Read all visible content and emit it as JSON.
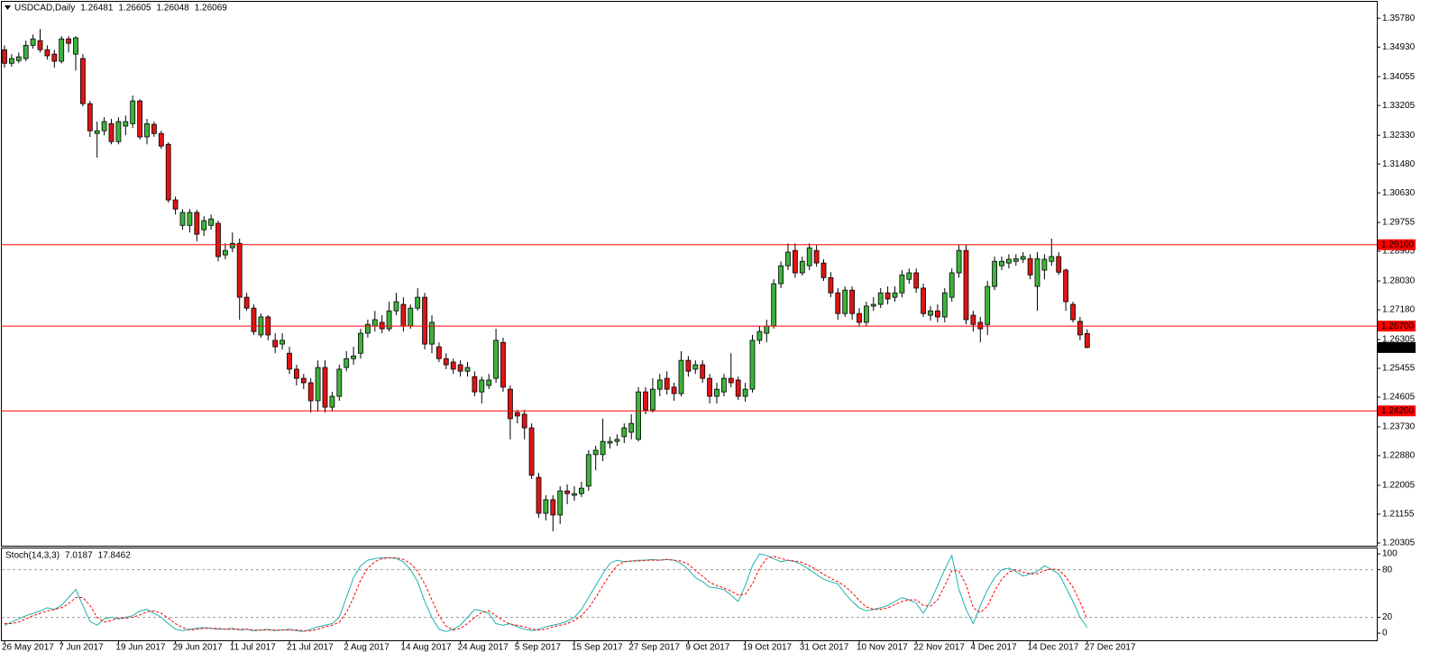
{
  "chart_data": [
    {
      "type": "candlestick",
      "title": "USDCAD,Daily",
      "categories": [
        "26 May 2017",
        null,
        null,
        null,
        null,
        null,
        null,
        null,
        "7 Jun 2017",
        null,
        null,
        null,
        null,
        null,
        null,
        null,
        "19 Jun 2017",
        null,
        null,
        null,
        null,
        null,
        null,
        null,
        "29 Jun 2017",
        null,
        null,
        null,
        null,
        null,
        null,
        null,
        "11 Jul 2017",
        null,
        null,
        null,
        null,
        null,
        null,
        null,
        "21 Jul 2017",
        null,
        null,
        null,
        null,
        null,
        null,
        null,
        "2 Aug 2017",
        null,
        null,
        null,
        null,
        null,
        null,
        null,
        "14 Aug 2017",
        null,
        null,
        null,
        null,
        null,
        null,
        null,
        "24 Aug 2017",
        null,
        null,
        null,
        null,
        null,
        null,
        null,
        "5 Sep 2017",
        null,
        null,
        null,
        null,
        null,
        null,
        null,
        "15 Sep 2017",
        null,
        null,
        null,
        null,
        null,
        null,
        null,
        "27 Sep 2017",
        null,
        null,
        null,
        null,
        null,
        null,
        null,
        "9 Oct 2017",
        null,
        null,
        null,
        null,
        null,
        null,
        null,
        "19 Oct 2017",
        null,
        null,
        null,
        null,
        null,
        null,
        null,
        "31 Oct 2017",
        null,
        null,
        null,
        null,
        null,
        null,
        null,
        "10 Nov 2017",
        null,
        null,
        null,
        null,
        null,
        null,
        null,
        "22 Nov 2017",
        null,
        null,
        null,
        null,
        null,
        null,
        null,
        "4 Dec 2017",
        null,
        null,
        null,
        null,
        null,
        null,
        null,
        "14 Dec 2017",
        null,
        null,
        null,
        null,
        null,
        null,
        null,
        "27 Dec 2017"
      ],
      "open": [
        1.3485,
        1.3445,
        1.3453,
        1.3459,
        1.3498,
        1.3512,
        1.3485,
        1.3472,
        1.3451,
        1.3517,
        1.3472,
        1.3459,
        1.3326,
        1.3238,
        1.3246,
        1.3267,
        1.3214,
        1.326,
        1.3267,
        1.3334,
        1.3228,
        1.3265,
        1.3238,
        1.3206,
        1.3042,
        1.2967,
        1.2967,
        1.3005,
        1.2954,
        1.2967,
        1.2973,
        1.288,
        1.2901,
        1.2914,
        1.2755,
        1.2723,
        1.2644,
        1.2697,
        1.2628,
        1.2617,
        1.259,
        1.2543,
        1.2516,
        1.2503,
        1.245,
        1.2548,
        1.2431,
        1.2463,
        1.2548,
        1.2574,
        1.259,
        1.2649,
        1.267,
        1.2681,
        1.2662,
        1.2715,
        1.2734,
        1.267,
        1.2723,
        1.2755,
        1.2617,
        1.2609,
        1.2574,
        1.2564,
        1.2556,
        1.2537,
        1.2521,
        1.2476,
        1.2495,
        1.2516,
        1.2622,
        1.2484,
        1.2415,
        1.241,
        1.237,
        1.2224,
        1.2118,
        1.2158,
        1.2113,
        1.2184,
        1.2171,
        1.2176,
        1.2198,
        1.2291,
        1.2291,
        1.2325,
        1.233,
        1.2344,
        1.2357,
        1.2336,
        1.2476,
        1.2423,
        1.2484,
        1.2516,
        1.249,
        1.2471,
        1.2569,
        1.2543,
        1.2556,
        1.2516,
        1.2463,
        1.2476,
        1.2516,
        1.2511,
        1.2463,
        1.2484,
        1.2628,
        1.2649,
        1.267,
        1.2795,
        1.2848,
        1.2893,
        1.2827,
        1.2848,
        1.2893,
        1.2856,
        1.2813,
        1.2768,
        1.2707,
        1.2776,
        1.2707,
        1.2681,
        1.2729,
        1.2734,
        1.2768,
        1.2755,
        1.2768,
        1.2808,
        1.2827,
        1.2782,
        1.2702,
        1.2715,
        1.2697,
        1.2755,
        1.2827,
        1.2893,
        1.2702,
        1.2681,
        1.2675,
        1.2787,
        1.2848,
        1.2856,
        1.2861,
        1.2867,
        1.2869,
        1.2787,
        1.2835,
        1.2861,
        1.2875,
        1.2835,
        1.2734,
        1.2684,
        1.26481
      ],
      "high": [
        1.3498,
        1.3472,
        1.3477,
        1.3512,
        1.353,
        1.3546,
        1.3498,
        1.3485,
        1.3525,
        1.3525,
        1.3525,
        1.3472,
        1.3334,
        1.3273,
        1.3286,
        1.3281,
        1.3286,
        1.3291,
        1.335,
        1.3339,
        1.3281,
        1.3273,
        1.3246,
        1.3212,
        1.3052,
        1.3015,
        1.3015,
        1.3013,
        1.2994,
        1.2999,
        1.2981,
        1.2914,
        1.2946,
        1.2928,
        1.2768,
        1.2734,
        1.2707,
        1.2702,
        1.2649,
        1.2649,
        1.2609,
        1.2556,
        1.2529,
        1.2516,
        1.2569,
        1.2569,
        1.2476,
        1.2556,
        1.2596,
        1.2609,
        1.2662,
        1.2689,
        1.2715,
        1.2702,
        1.2742,
        1.2768,
        1.2755,
        1.2734,
        1.2782,
        1.2768,
        1.2702,
        1.2622,
        1.259,
        1.2574,
        1.2569,
        1.2564,
        1.2537,
        1.2521,
        1.2529,
        1.2662,
        1.2636,
        1.2495,
        1.2423,
        1.2423,
        1.2383,
        1.2237,
        1.2171,
        1.2171,
        1.2198,
        1.2203,
        1.2198,
        1.2211,
        1.2304,
        1.2317,
        1.2397,
        1.2344,
        1.2351,
        1.2383,
        1.241,
        1.249,
        1.249,
        1.2516,
        1.2529,
        1.2537,
        1.2503,
        1.2596,
        1.2582,
        1.2569,
        1.2569,
        1.2529,
        1.2503,
        1.2529,
        1.259,
        1.2521,
        1.2503,
        1.2644,
        1.267,
        1.2689,
        1.2808,
        1.2861,
        1.2914,
        1.2914,
        1.2875,
        1.2914,
        1.2909,
        1.2867,
        1.2829,
        1.2782,
        1.2787,
        1.2787,
        1.2723,
        1.2742,
        1.2755,
        1.2782,
        1.2787,
        1.2787,
        1.2835,
        1.284,
        1.284,
        1.2795,
        1.2729,
        1.2734,
        1.2782,
        1.284,
        1.2909,
        1.2909,
        1.2715,
        1.2697,
        1.2803,
        1.2875,
        1.2875,
        1.2882,
        1.2882,
        1.2888,
        1.2882,
        1.2888,
        1.2882,
        1.2928,
        1.2888,
        1.284,
        1.2742,
        1.2697,
        1.26605
      ],
      "low": [
        1.3432,
        1.3435,
        1.3445,
        1.3451,
        1.3488,
        1.3477,
        1.3456,
        1.3432,
        1.3445,
        1.3477,
        1.3424,
        1.3318,
        1.3228,
        1.3167,
        1.3233,
        1.3206,
        1.3206,
        1.3233,
        1.3254,
        1.322,
        1.3206,
        1.3228,
        1.3193,
        1.3034,
        1.2999,
        1.2954,
        1.2946,
        1.292,
        1.2936,
        1.2954,
        1.2861,
        1.2867,
        1.2888,
        1.2689,
        1.2715,
        1.2644,
        1.2636,
        1.2628,
        1.259,
        1.2601,
        1.2529,
        1.2495,
        1.2484,
        1.2415,
        1.2418,
        1.2415,
        1.2421,
        1.245,
        1.2537,
        1.2556,
        1.2574,
        1.2636,
        1.2654,
        1.2649,
        1.2654,
        1.2702,
        1.2654,
        1.2662,
        1.2715,
        1.2601,
        1.259,
        1.2564,
        1.2543,
        1.2529,
        1.2521,
        1.2521,
        1.2463,
        1.2442,
        1.2484,
        1.2503,
        1.2476,
        1.2336,
        1.2383,
        1.2336,
        1.2219,
        1.2105,
        1.2097,
        1.2065,
        1.2086,
        1.2145,
        1.2155,
        1.2166,
        1.2184,
        1.2245,
        1.2272,
        1.2309,
        1.2317,
        1.2325,
        1.2336,
        1.233,
        1.241,
        1.2415,
        1.2463,
        1.2468,
        1.245,
        1.2463,
        1.2521,
        1.2529,
        1.2503,
        1.2442,
        1.2442,
        1.2463,
        1.249,
        1.2452,
        1.2447,
        1.2474,
        1.2617,
        1.2622,
        1.2662,
        1.2782,
        1.2835,
        1.2813,
        1.2819,
        1.2835,
        1.2845,
        1.2803,
        1.2755,
        1.2689,
        1.2697,
        1.2689,
        1.267,
        1.267,
        1.2715,
        1.2723,
        1.2734,
        1.2742,
        1.2755,
        1.2795,
        1.2768,
        1.2697,
        1.2686,
        1.2681,
        1.2681,
        1.2742,
        1.2813,
        1.2675,
        1.2654,
        1.2622,
        1.2644,
        1.2776,
        1.2835,
        1.284,
        1.2848,
        1.2856,
        1.2808,
        1.2715,
        1.2808,
        1.2848,
        1.2821,
        1.2715,
        1.2681,
        1.2628,
        1.26048
      ],
      "close": [
        1.3445,
        1.3459,
        1.3464,
        1.3498,
        1.3517,
        1.3485,
        1.3467,
        1.3451,
        1.3517,
        1.3504,
        1.352,
        1.3326,
        1.3246,
        1.3246,
        1.3273,
        1.3214,
        1.3273,
        1.3273,
        1.3334,
        1.3228,
        1.3267,
        1.3238,
        1.3201,
        1.3042,
        1.3015,
        1.3005,
        1.3005,
        1.2941,
        1.2981,
        1.2986,
        1.2875,
        1.2893,
        1.2914,
        1.2755,
        1.2723,
        1.2654,
        1.2697,
        1.2644,
        1.2609,
        1.2628,
        1.2543,
        1.2516,
        1.2503,
        1.245,
        1.2548,
        1.2431,
        1.2463,
        1.2543,
        1.2574,
        1.2582,
        1.2649,
        1.2675,
        1.2689,
        1.2662,
        1.2715,
        1.2742,
        1.267,
        1.2723,
        1.2755,
        1.2617,
        1.2681,
        1.2574,
        1.2556,
        1.2543,
        1.2537,
        1.2548,
        1.2476,
        1.2511,
        1.2511,
        1.2628,
        1.249,
        1.2397,
        1.2405,
        1.237,
        1.223,
        1.2118,
        1.2158,
        1.2113,
        1.2184,
        1.2176,
        1.2176,
        1.2192,
        1.2291,
        1.2304,
        1.233,
        1.233,
        1.2336,
        1.237,
        1.2383,
        1.2476,
        1.2423,
        1.2484,
        1.2511,
        1.2484,
        1.2471,
        1.2569,
        1.2537,
        1.2556,
        1.2516,
        1.2463,
        1.2484,
        1.2516,
        1.2503,
        1.2463,
        1.2484,
        1.2628,
        1.2654,
        1.267,
        1.2795,
        1.2848,
        1.2888,
        1.2827,
        1.2861,
        1.2901,
        1.2856,
        1.2813,
        1.2768,
        1.2707,
        1.2776,
        1.2707,
        1.2681,
        1.2729,
        1.2734,
        1.2768,
        1.275,
        1.2768,
        1.2821,
        1.2827,
        1.2782,
        1.2707,
        1.2715,
        1.2697,
        1.2768,
        1.2827,
        1.2893,
        1.2689,
        1.2675,
        1.2662,
        1.2787,
        1.2861,
        1.2861,
        1.2867,
        1.2869,
        1.2875,
        1.2821,
        1.2869,
        1.2867,
        1.2875,
        1.2829,
        1.2742,
        1.2689,
        1.2644,
        1.26069
      ],
      "up_color": "#3cb43c",
      "down_color": "#e01414",
      "ylim": [
        1.2025,
        1.3629
      ],
      "yticks": [
        {
          "value": 1.3578,
          "label": "1.35780"
        },
        {
          "value": 1.3493,
          "label": "1.34930"
        },
        1.34055,
        1.33205,
        {
          "value": 1.3233,
          "label": "1.32330"
        },
        {
          "value": 1.3148,
          "label": "1.31480"
        },
        {
          "value": 1.3063,
          "label": "1.30630"
        },
        1.29755,
        1.28905,
        {
          "value": 1.2803,
          "label": "1.28030"
        },
        {
          "value": 1.2718,
          "label": "1.27180"
        },
        1.26305,
        1.25455,
        1.24605,
        {
          "value": 1.2373,
          "label": "1.23730"
        },
        {
          "value": 1.2288,
          "label": "1.22880"
        },
        1.22005,
        1.21155,
        1.20305
      ],
      "levels": [
        {
          "value": 1.291,
          "label": "1.29100"
        },
        {
          "value": 1.267,
          "label": "1.26700"
        },
        {
          "value": 1.242,
          "label": "1.24200"
        }
      ],
      "level_color": "#ff0000",
      "last_price_color": "#000000"
    },
    {
      "type": "line",
      "title": "Stoch(14,3,3)",
      "series": [
        {
          "color": "#20b2aa",
          "dashed": false,
          "values": [
            10,
            14,
            18,
            22,
            25,
            28,
            32,
            30,
            35,
            45,
            55,
            35,
            15,
            10,
            18,
            20,
            18,
            20,
            22,
            28,
            30,
            25,
            20,
            12,
            5,
            3,
            5,
            6,
            7,
            6,
            5,
            5,
            6,
            4,
            5,
            3,
            4,
            5,
            3,
            4,
            5,
            3,
            2,
            5,
            8,
            10,
            12,
            20,
            45,
            70,
            85,
            92,
            94,
            95,
            95,
            94,
            90,
            80,
            65,
            40,
            20,
            5,
            2,
            5,
            10,
            20,
            30,
            28,
            25,
            12,
            10,
            12,
            8,
            5,
            3,
            5,
            8,
            10,
            12,
            15,
            20,
            30,
            45,
            60,
            75,
            88,
            92,
            90,
            91,
            92,
            92,
            93,
            92,
            93,
            92,
            88,
            80,
            70,
            65,
            58,
            57,
            55,
            48,
            40,
            60,
            85,
            100,
            98,
            94,
            90,
            92,
            90,
            86,
            80,
            74,
            68,
            65,
            62,
            50,
            40,
            32,
            28,
            30,
            32,
            35,
            40,
            45,
            42,
            38,
            25,
            40,
            60,
            80,
            98,
            55,
            30,
            12,
            35,
            55,
            70,
            80,
            82,
            78,
            72,
            75,
            78,
            85,
            80,
            75,
            58,
            40,
            20,
            7.0187
          ]
        },
        {
          "color": "#ff0000",
          "dashed": true,
          "values": [
            12,
            12,
            14,
            18,
            22,
            25,
            28,
            30,
            32,
            37,
            45,
            45,
            35,
            20,
            14,
            16,
            19,
            19,
            20,
            23,
            27,
            28,
            25,
            19,
            12,
            7,
            4,
            5,
            6,
            6,
            6,
            5,
            5,
            5,
            5,
            4,
            4,
            4,
            4,
            4,
            4,
            4,
            3,
            3,
            5,
            8,
            10,
            14,
            26,
            45,
            67,
            82,
            90,
            94,
            95,
            95,
            93,
            88,
            78,
            62,
            42,
            22,
            9,
            4,
            6,
            12,
            20,
            26,
            28,
            22,
            16,
            11,
            10,
            8,
            5,
            4,
            5,
            8,
            10,
            12,
            16,
            22,
            32,
            45,
            60,
            74,
            85,
            90,
            91,
            91,
            92,
            92,
            92,
            93,
            92,
            91,
            87,
            79,
            72,
            64,
            60,
            57,
            53,
            48,
            49,
            62,
            82,
            94,
            97,
            94,
            92,
            91,
            89,
            85,
            80,
            74,
            69,
            65,
            59,
            51,
            41,
            33,
            30,
            30,
            32,
            36,
            40,
            42,
            42,
            35,
            34,
            42,
            60,
            79,
            78,
            61,
            32,
            26,
            34,
            53,
            68,
            77,
            80,
            77,
            75,
            75,
            79,
            81,
            80,
            71,
            58,
            39,
            17.8462
          ]
        }
      ],
      "ylim": [
        -9,
        108
      ],
      "yticks": [
        0,
        20,
        80,
        100
      ],
      "levels": [
        20,
        80
      ],
      "level_color": "#a0a0a0"
    }
  ]
}
